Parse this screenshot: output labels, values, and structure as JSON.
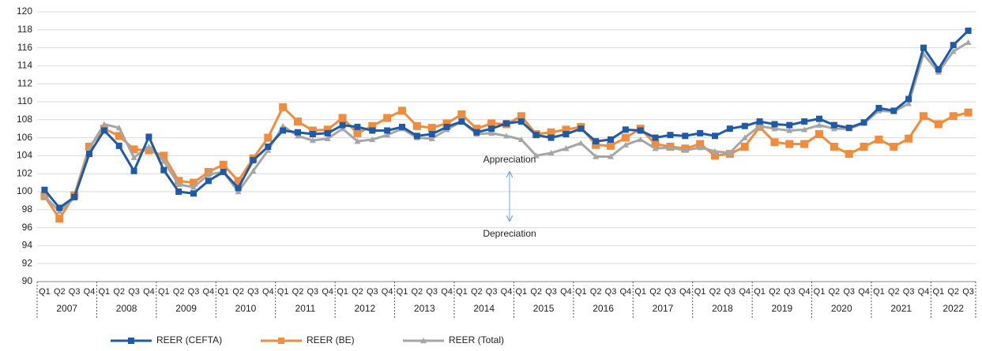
{
  "chart_data": {
    "type": "line",
    "categories": [
      "Q1",
      "Q2",
      "Q3",
      "Q4",
      "Q1",
      "Q2",
      "Q3",
      "Q4",
      "Q1",
      "Q2",
      "Q3",
      "Q4",
      "Q1",
      "Q2",
      "Q3",
      "Q4",
      "Q1",
      "Q2",
      "Q3",
      "Q4",
      "Q1",
      "Q2",
      "Q3",
      "Q4",
      "Q1",
      "Q2",
      "Q3",
      "Q4",
      "Q1",
      "Q2",
      "Q3",
      "Q4",
      "Q1",
      "Q2",
      "Q3",
      "Q4",
      "Q1",
      "Q2",
      "Q3",
      "Q4",
      "Q1",
      "Q2",
      "Q3",
      "Q4",
      "Q1",
      "Q2",
      "Q3",
      "Q4",
      "Q1",
      "Q2",
      "Q3",
      "Q4",
      "Q1",
      "Q2",
      "Q3",
      "Q4",
      "Q1",
      "Q2",
      "Q3",
      "Q4",
      "Q1",
      "Q2",
      "Q3"
    ],
    "years": [
      "2007",
      "2008",
      "2009",
      "2010",
      "2011",
      "2012",
      "2013",
      "2014",
      "2015",
      "2016",
      "2017",
      "2018",
      "2019",
      "2020",
      "2021",
      "2022"
    ],
    "series": [
      {
        "name": "REER (CEFTA)",
        "color": "#1f5aa6",
        "marker": "square",
        "values": [
          100.2,
          98.2,
          99.4,
          104.2,
          106.8,
          105.1,
          102.3,
          106.1,
          102.4,
          100.0,
          99.8,
          101.2,
          102.2,
          100.4,
          103.5,
          105.0,
          106.8,
          106.6,
          106.4,
          106.5,
          107.4,
          107.2,
          106.8,
          106.8,
          107.2,
          106.2,
          106.4,
          107.2,
          107.8,
          106.6,
          107.0,
          107.6,
          107.8,
          106.3,
          106.0,
          106.4,
          107.0,
          105.6,
          105.8,
          106.9,
          106.8,
          106.0,
          106.3,
          106.2,
          106.5,
          106.2,
          107.0,
          107.3,
          107.8,
          107.5,
          107.4,
          107.8,
          108.1,
          107.4,
          107.1,
          107.7,
          109.3,
          109.0,
          110.3,
          116.0,
          113.6,
          116.3,
          117.9
        ]
      },
      {
        "name": "REER (BE)",
        "color": "#f08c3c",
        "marker": "square",
        "values": [
          99.5,
          97.0,
          99.6,
          105.0,
          107.0,
          106.2,
          104.7,
          104.6,
          104.0,
          101.2,
          101.0,
          102.2,
          103.0,
          101.2,
          103.7,
          106.0,
          109.4,
          107.8,
          106.8,
          106.9,
          108.2,
          106.5,
          107.3,
          108.2,
          109.0,
          107.3,
          107.1,
          107.6,
          108.6,
          107.0,
          107.6,
          107.5,
          108.4,
          106.4,
          106.6,
          106.9,
          107.2,
          105.2,
          105.1,
          106.0,
          107.0,
          105.3,
          105.0,
          104.8,
          105.3,
          104.0,
          104.2,
          105.0,
          107.2,
          105.5,
          105.3,
          105.3,
          106.4,
          105.0,
          104.2,
          105.0,
          105.8,
          105.0,
          105.9,
          108.4,
          107.5,
          108.4,
          108.8
        ]
      },
      {
        "name": "REER (Total)",
        "color": "#a6a6a6",
        "marker": "triangle",
        "values": [
          99.5,
          97.8,
          99.3,
          104.8,
          107.5,
          107.1,
          103.8,
          105.0,
          103.4,
          100.8,
          100.5,
          101.9,
          102.2,
          100.0,
          102.3,
          104.6,
          107.3,
          106.2,
          105.7,
          105.9,
          107.0,
          105.6,
          105.8,
          106.3,
          107.0,
          106.0,
          105.9,
          106.9,
          107.8,
          106.4,
          106.5,
          106.2,
          105.8,
          104.0,
          104.3,
          104.8,
          105.4,
          103.9,
          103.9,
          105.2,
          105.8,
          104.8,
          104.9,
          104.6,
          104.9,
          104.5,
          104.3,
          106.0,
          107.3,
          107.0,
          106.8,
          106.9,
          107.4,
          107.0,
          107.0,
          107.6,
          109.0,
          108.9,
          109.8,
          115.3,
          113.3,
          115.6,
          116.6
        ]
      }
    ],
    "ylim": [
      90,
      120
    ],
    "yticks": [
      90,
      92,
      94,
      96,
      98,
      100,
      102,
      104,
      106,
      108,
      110,
      112,
      114,
      116,
      118,
      120
    ],
    "grid": true,
    "annotations": [
      "Appreciation",
      "Depreciation"
    ],
    "legend": "bottom"
  }
}
